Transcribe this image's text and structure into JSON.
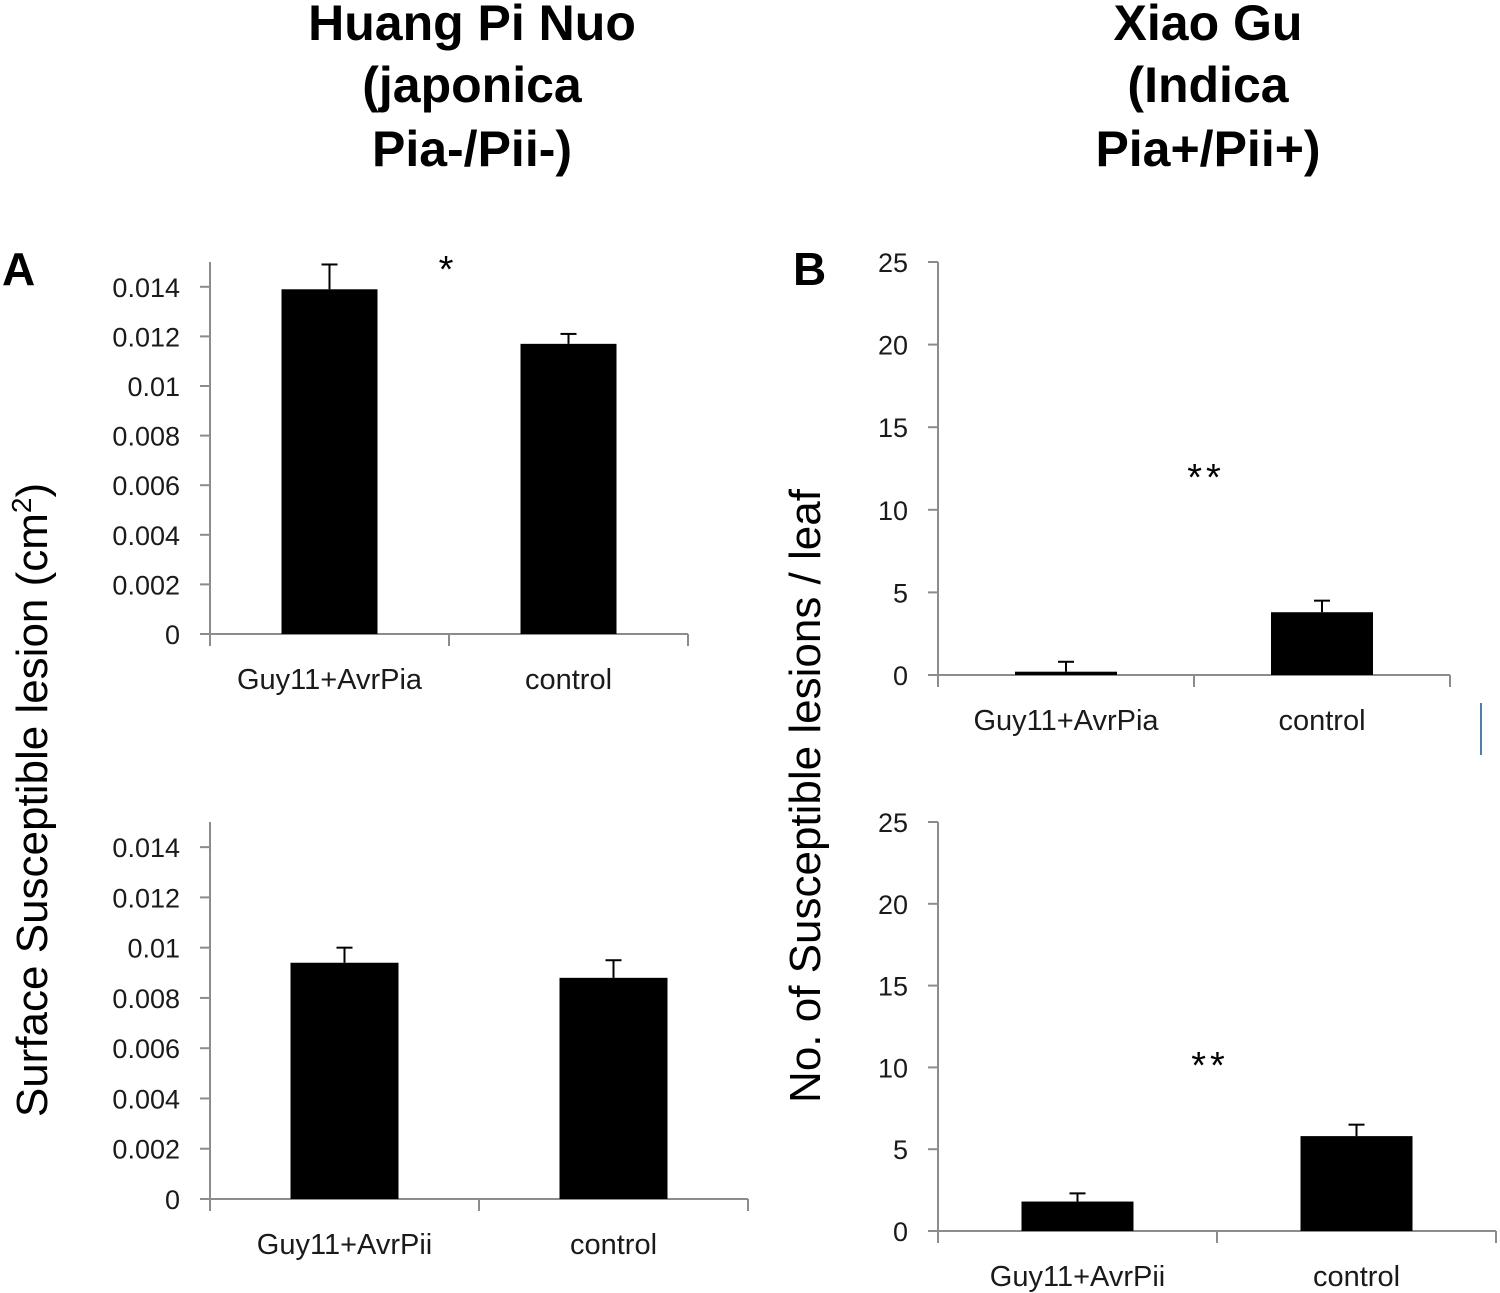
{
  "titles": {
    "left": [
      "Huang Pi Nuo",
      "(japonica",
      "Pia-/Pii-)"
    ],
    "right": [
      "Xiao Gu",
      "(Indica",
      "Pia+/Pii+)"
    ]
  },
  "panel_labels": {
    "a": "A",
    "b": "B"
  },
  "y_labels": {
    "left_main": "Surface Susceptible lesion (cm",
    "left_sup": "2",
    "left_end": ")",
    "right": "No. of Susceptible lesions / leaf"
  },
  "chart_data": [
    {
      "type": "bar",
      "panel": "A-top",
      "categories": [
        "Guy11+AvrPia",
        "control"
      ],
      "values": [
        0.0139,
        0.0117
      ],
      "errors": [
        0.001,
        0.0004
      ],
      "ylim": [
        0,
        0.015
      ],
      "yticks": [
        0,
        0.002,
        0.004,
        0.006,
        0.008,
        0.01,
        0.012,
        0.014
      ],
      "ytick_labels": [
        "0",
        "0.002",
        "0.004",
        "0.006",
        "0.008",
        "0.01",
        "0.012",
        "0.014"
      ],
      "significance": "*",
      "color": "#000000"
    },
    {
      "type": "bar",
      "panel": "A-bottom",
      "categories": [
        "Guy11+AvrPii",
        "control"
      ],
      "values": [
        0.0094,
        0.0088
      ],
      "errors": [
        0.0006,
        0.0007
      ],
      "ylim": [
        0,
        0.015
      ],
      "yticks": [
        0,
        0.002,
        0.004,
        0.006,
        0.008,
        0.01,
        0.012,
        0.014
      ],
      "ytick_labels": [
        "0",
        "0.002",
        "0.004",
        "0.006",
        "0.008",
        "0.01",
        "0.012",
        "0.014"
      ],
      "significance": "",
      "color": "#000000"
    },
    {
      "type": "bar",
      "panel": "B-top",
      "categories": [
        "Guy11+AvrPia",
        "control"
      ],
      "values": [
        0.2,
        3.8
      ],
      "errors": [
        0.6,
        0.7
      ],
      "ylim": [
        0,
        25
      ],
      "yticks": [
        0,
        5,
        10,
        15,
        20,
        25
      ],
      "ytick_labels": [
        "0",
        "5",
        "10",
        "15",
        "20",
        "25"
      ],
      "significance": "**",
      "color": "#000000"
    },
    {
      "type": "bar",
      "panel": "B-bottom",
      "categories": [
        "Guy11+AvrPii",
        "control"
      ],
      "values": [
        1.8,
        5.8
      ],
      "errors": [
        0.5,
        0.7
      ],
      "ylim": [
        0,
        25
      ],
      "yticks": [
        0,
        5,
        10,
        15,
        20,
        25
      ],
      "ytick_labels": [
        "0",
        "5",
        "10",
        "15",
        "20",
        "25"
      ],
      "significance": "**",
      "color": "#000000"
    }
  ]
}
